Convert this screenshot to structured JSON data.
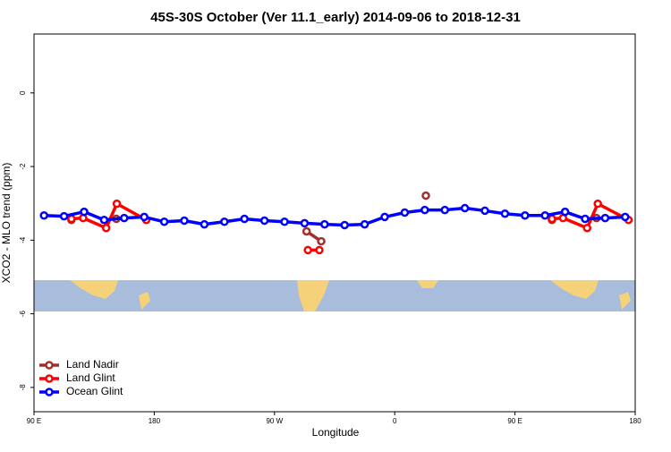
{
  "chart_data": {
    "type": "line",
    "title": "45S-30S October (Ver 11.1_early)   2014-09-06 to 2018-12-31",
    "x_label": "Longitude",
    "y_label": "XCO2 - MLO trend (ppm)",
    "xlim": [
      90,
      540
    ],
    "ylim": [
      -8.66,
      1.6
    ],
    "xticks": [
      {
        "value": 90,
        "label": "90 E"
      },
      180,
      {
        "value": 270,
        "label": "90 W"
      },
      {
        "value": 360,
        "label": "0"
      },
      {
        "value": 450,
        "label": "90 E"
      },
      {
        "value": 540,
        "label": "180"
      }
    ],
    "yticks": [
      -8,
      -6,
      -4,
      -2,
      0
    ],
    "legend": "bottom-left",
    "series": [
      {
        "name": "Land Nadir",
        "color": "#a0302c",
        "x": [
          118,
          null,
          151.6,
          null,
          294,
          305,
          null,
          383.3,
          null,
          477.7,
          null,
          511
        ],
        "values": [
          -3.45,
          null,
          -3.42,
          null,
          -3.76,
          -4.03,
          null,
          -2.79,
          null,
          -3.45,
          null,
          -3.4
        ]
      },
      {
        "name": "Land Glint",
        "color": "#ff0000",
        "x": [
          118,
          126.8,
          144,
          152,
          174,
          null,
          295,
          303.6,
          null,
          477.7,
          486,
          504,
          512,
          535
        ],
        "values": [
          -3.42,
          -3.4,
          -3.67,
          -3.01,
          -3.45,
          null,
          -4.27,
          -4.27,
          null,
          -3.42,
          -3.4,
          -3.67,
          -3.01,
          -3.45
        ]
      },
      {
        "name": "Ocean Glint",
        "color": "#0000ff",
        "x": [
          97.5,
          112.5,
          127.5,
          142.5,
          157.5,
          172.5,
          187.5,
          202.5,
          217.5,
          232.5,
          247.5,
          262.5,
          277.5,
          292.5,
          307.5,
          322.5,
          337.5,
          352.5,
          367.5,
          382.5,
          397.5,
          412.5,
          427.5,
          442.5,
          457.5,
          472.5,
          487.5,
          502.5,
          517.5,
          532.5
        ],
        "values": [
          -3.33,
          -3.35,
          -3.23,
          -3.45,
          -3.4,
          -3.37,
          -3.5,
          -3.47,
          -3.57,
          -3.5,
          -3.42,
          -3.47,
          -3.5,
          -3.54,
          -3.57,
          -3.59,
          -3.57,
          -3.37,
          -3.25,
          -3.18,
          -3.18,
          -3.13,
          -3.2,
          -3.28,
          -3.33,
          -3.33,
          -3.23,
          -3.42,
          -3.4,
          -3.37
        ]
      }
    ]
  }
}
